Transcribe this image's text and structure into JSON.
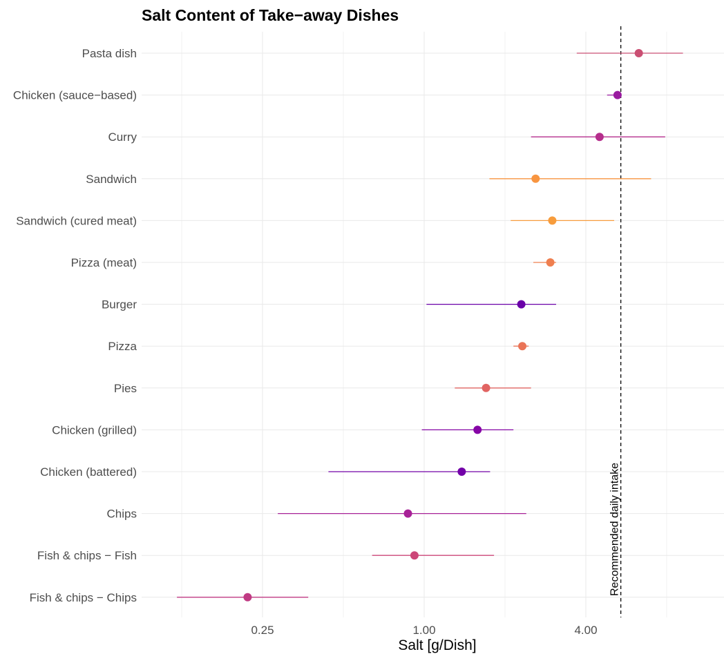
{
  "chart_data": {
    "type": "scatter",
    "subtype": "dot-with-range",
    "title": "Salt Content of Take−away Dishes",
    "xlabel": "Salt [g/Dish]",
    "ylabel": "",
    "x_scale": "log2",
    "xlim": [
      0.09,
      9.5
    ],
    "x_ticks": [
      0.25,
      1.0,
      4.0
    ],
    "x_tick_labels": [
      "0.25",
      "1.00",
      "4.00"
    ],
    "grid": true,
    "legend": "none",
    "reference_line": {
      "value": 5.4,
      "label": "Recommended daily intake",
      "style": "dashed",
      "color": "#000000"
    },
    "categories": [
      "Pasta dish",
      "Chicken (sauce−based)",
      "Curry",
      "Sandwich",
      "Sandwich (cured meat)",
      "Pizza (meat)",
      "Burger",
      "Pizza",
      "Pies",
      "Chicken (grilled)",
      "Chicken (battered)",
      "Chips",
      "Fish & chips − Fish",
      "Fish & chips − Chips"
    ],
    "points": [
      {
        "category": "Pasta dish",
        "value": 6.3,
        "low": 3.7,
        "high": 9.2,
        "color": "#ca4f73"
      },
      {
        "category": "Chicken (sauce−based)",
        "value": 5.25,
        "low": 4.8,
        "high": 5.4,
        "color": "#9a1ba0"
      },
      {
        "category": "Curry",
        "value": 4.5,
        "low": 2.5,
        "high": 7.9,
        "color": "#b52e8c"
      },
      {
        "category": "Sandwich",
        "value": 2.6,
        "low": 1.75,
        "high": 7.0,
        "color": "#f89540"
      },
      {
        "category": "Sandwich (cured meat)",
        "value": 3.0,
        "low": 2.1,
        "high": 5.1,
        "color": "#f79c3c"
      },
      {
        "category": "Pizza (meat)",
        "value": 2.95,
        "low": 2.55,
        "high": 3.1,
        "color": "#ef7f4f"
      },
      {
        "category": "Burger",
        "value": 2.3,
        "low": 1.02,
        "high": 3.1,
        "color": "#6a00a8"
      },
      {
        "category": "Pizza",
        "value": 2.32,
        "low": 2.15,
        "high": 2.45,
        "color": "#ea7457"
      },
      {
        "category": "Pies",
        "value": 1.7,
        "low": 1.3,
        "high": 2.5,
        "color": "#e16462"
      },
      {
        "category": "Chicken (grilled)",
        "value": 1.58,
        "low": 0.98,
        "high": 2.15,
        "color": "#8606a6"
      },
      {
        "category": "Chicken (battered)",
        "value": 1.38,
        "low": 0.44,
        "high": 1.76,
        "color": "#7201a8"
      },
      {
        "category": "Chips",
        "value": 0.87,
        "low": 0.285,
        "high": 2.4,
        "color": "#a72197"
      },
      {
        "category": "Fish & chips − Fish",
        "value": 0.92,
        "low": 0.64,
        "high": 1.82,
        "color": "#cc4778"
      },
      {
        "category": "Fish & chips − Chips",
        "value": 0.22,
        "low": 0.12,
        "high": 0.37,
        "color": "#c03a83"
      }
    ]
  }
}
